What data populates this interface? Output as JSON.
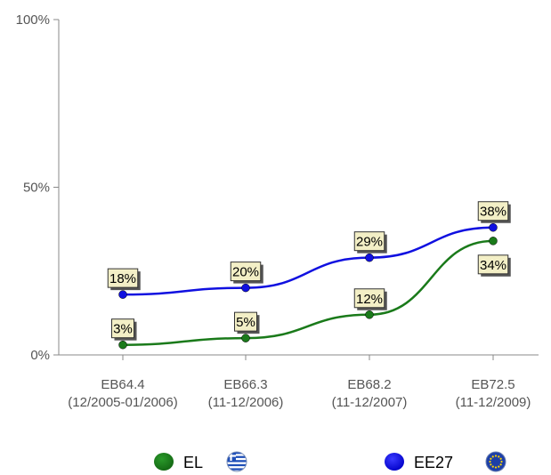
{
  "chart_data": {
    "type": "line",
    "title": "",
    "xlabel": "",
    "ylabel": "",
    "ylim": [
      0,
      100
    ],
    "yticks": [
      "0%",
      "50%",
      "100%"
    ],
    "ytick_values": [
      0,
      50,
      100
    ],
    "categories": [
      {
        "line1": "EB64.4",
        "line2": "(12/2005-01/2006)"
      },
      {
        "line1": "EB66.3",
        "line2": "(11-12/2006)"
      },
      {
        "line1": "EB68.2",
        "line2": "(11-12/2007)"
      },
      {
        "line1": "EB72.5",
        "line2": "(11-12/2009)"
      }
    ],
    "series": [
      {
        "name": "EE27",
        "color": "#1010e0",
        "icon": "eu-flag-icon",
        "values": [
          18,
          20,
          29,
          38
        ],
        "labels": [
          "18%",
          "20%",
          "29%",
          "38%"
        ]
      },
      {
        "name": "EL",
        "color": "#1a7a1a",
        "icon": "greek-flag-icon",
        "values": [
          3,
          5,
          12,
          34
        ],
        "labels": [
          "3%",
          "5%",
          "12%",
          "34%"
        ]
      }
    ],
    "grid": false,
    "legend": "bottom"
  }
}
